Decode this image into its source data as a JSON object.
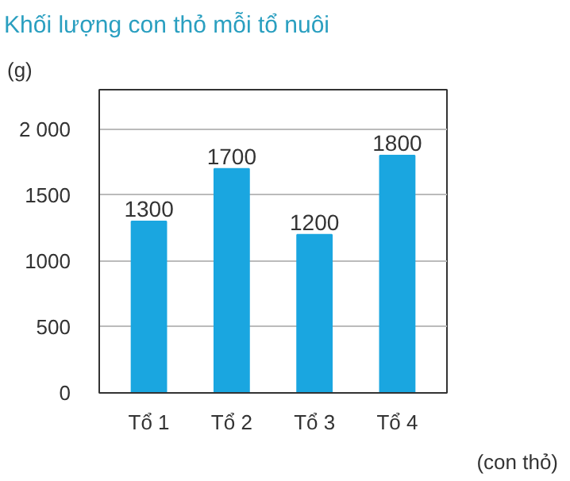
{
  "chart_data": {
    "type": "bar",
    "title": "Khối lượng con thỏ mỗi tổ nuôi",
    "ylabel": "(g)",
    "xlabel": "(con thỏ)",
    "categories": [
      "Tổ 1",
      "Tổ 2",
      "Tổ 3",
      "Tổ 4"
    ],
    "values": [
      1300,
      1700,
      1200,
      1800
    ],
    "color": "#1aa6e0",
    "ylim": [
      0,
      2300
    ],
    "yticks": [
      0,
      500,
      1000,
      1500,
      {
        "value": 2000,
        "label": "2 000"
      }
    ],
    "grid": "y",
    "data_labels": true
  }
}
